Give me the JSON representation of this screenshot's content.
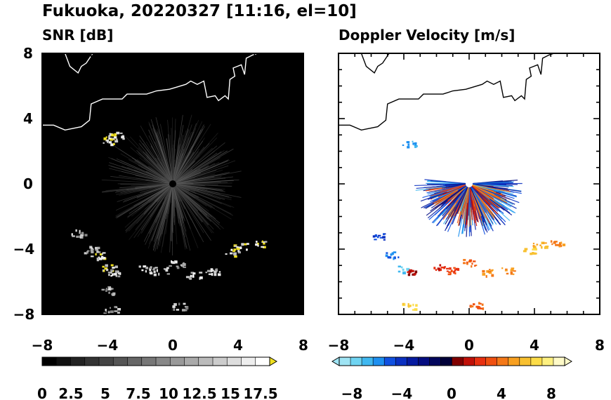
{
  "figure": {
    "title": "Fukuoka, 20220327 [11:16, el=10]"
  },
  "panels": [
    {
      "title": "SNR [dB]",
      "background": "#000000",
      "coastline": "#ffffff",
      "xticks": [
        "−8",
        "−4",
        "0",
        "4",
        "8"
      ],
      "yticks": [
        "8",
        "4",
        "0",
        "−4",
        "−8"
      ],
      "colorbar": {
        "ticks": [
          "0",
          "2.5",
          "5",
          "7.5",
          "10",
          "12.5",
          "15",
          "17.5"
        ],
        "range": [
          0,
          17.5
        ],
        "extend": "max",
        "colors": [
          "#000000",
          "#111111",
          "#222222",
          "#333333",
          "#444444",
          "#555555",
          "#666666",
          "#777777",
          "#888888",
          "#999999",
          "#aaaaaa",
          "#bbbbbb",
          "#cccccc",
          "#dddddd",
          "#eeeeee",
          "#ffffff"
        ],
        "over_color": "#f0e020"
      }
    },
    {
      "title": "Doppler Velocity [m/s]",
      "background": "#ffffff",
      "coastline": "#000000",
      "xticks": [
        "−8",
        "−4",
        "0",
        "4",
        "8"
      ],
      "yticks": [],
      "colorbar": {
        "ticks": [
          "−8",
          "−4",
          "0",
          "4",
          "8"
        ],
        "range": [
          -10,
          10
        ],
        "extend": "both",
        "colors": [
          "#9fe4f4",
          "#6fd4f2",
          "#40b8f0",
          "#1e90f0",
          "#1050e0",
          "#0a30c0",
          "#061aa0",
          "#040c80",
          "#02065c",
          "#000038",
          "#800000",
          "#c01008",
          "#e83010",
          "#f05010",
          "#f47818",
          "#f8a020",
          "#f8c030",
          "#fcdc48",
          "#fdf080",
          "#fefac8"
        ]
      }
    }
  ],
  "chart_data": {
    "type": "heatmap",
    "title": "Fukuoka, 20220327 [11:16, el=10]",
    "panels": [
      {
        "title": "SNR [dB]",
        "xlim": [
          -8,
          8
        ],
        "ylim": [
          -8,
          8
        ],
        "ticks": [
          -8,
          -4,
          0,
          4,
          8
        ],
        "colorbar_range": [
          0,
          17.5
        ],
        "center_radar": [
          0,
          0
        ],
        "clutter_ring_radius": 2,
        "echo_regions": [
          {
            "x": -3.9,
            "y": 2.7,
            "snr": 18
          },
          {
            "x": -3.5,
            "y": 3.0,
            "snr": 18
          },
          {
            "x": -5.8,
            "y": -3.0,
            "snr": 14
          },
          {
            "x": -5.0,
            "y": -4.0,
            "snr": 15
          },
          {
            "x": -4.6,
            "y": -4.4,
            "snr": 18
          },
          {
            "x": -3.9,
            "y": -5.1,
            "snr": 18
          },
          {
            "x": -3.6,
            "y": -5.4,
            "snr": 15
          },
          {
            "x": -4.0,
            "y": -6.5,
            "snr": 13
          },
          {
            "x": -3.8,
            "y": -7.7,
            "snr": 14
          },
          {
            "x": -1.8,
            "y": -5.2,
            "snr": 15
          },
          {
            "x": -0.8,
            "y": -5.3,
            "snr": 15
          },
          {
            "x": 0.2,
            "y": -4.9,
            "snr": 14
          },
          {
            "x": 1.2,
            "y": -5.6,
            "snr": 15
          },
          {
            "x": 2.4,
            "y": -5.3,
            "snr": 15
          },
          {
            "x": 3.6,
            "y": -4.2,
            "snr": 18
          },
          {
            "x": 4.1,
            "y": -3.8,
            "snr": 18
          },
          {
            "x": 5.2,
            "y": -3.6,
            "snr": 18
          },
          {
            "x": 0.4,
            "y": -7.5,
            "snr": 13
          }
        ]
      },
      {
        "title": "Doppler Velocity [m/s]",
        "xlim": [
          -8,
          8
        ],
        "ylim": [
          -8,
          8
        ],
        "ticks": [
          -8,
          -4,
          0,
          4,
          8
        ],
        "colorbar_range": [
          -10,
          10
        ],
        "echo_regions": [
          {
            "x": -3.7,
            "y": 2.5,
            "v": -7
          },
          {
            "x": -5.6,
            "y": -3.2,
            "v": -5
          },
          {
            "x": -4.8,
            "y": -4.3,
            "v": -6
          },
          {
            "x": -4.0,
            "y": -5.2,
            "v": -8
          },
          {
            "x": -3.6,
            "y": -5.3,
            "v": 1
          },
          {
            "x": -3.7,
            "y": -7.5,
            "v": 7
          },
          {
            "x": -1.8,
            "y": -5.1,
            "v": 2
          },
          {
            "x": -1.0,
            "y": -5.3,
            "v": 3
          },
          {
            "x": 0.0,
            "y": -4.8,
            "v": 4
          },
          {
            "x": 1.2,
            "y": -5.4,
            "v": 5
          },
          {
            "x": 2.4,
            "y": -5.3,
            "v": 5
          },
          {
            "x": 3.7,
            "y": -4.1,
            "v": 7
          },
          {
            "x": 4.3,
            "y": -3.7,
            "v": 6
          },
          {
            "x": 5.3,
            "y": -3.6,
            "v": 5
          },
          {
            "x": 0.4,
            "y": -7.4,
            "v": 4
          }
        ]
      }
    ]
  }
}
